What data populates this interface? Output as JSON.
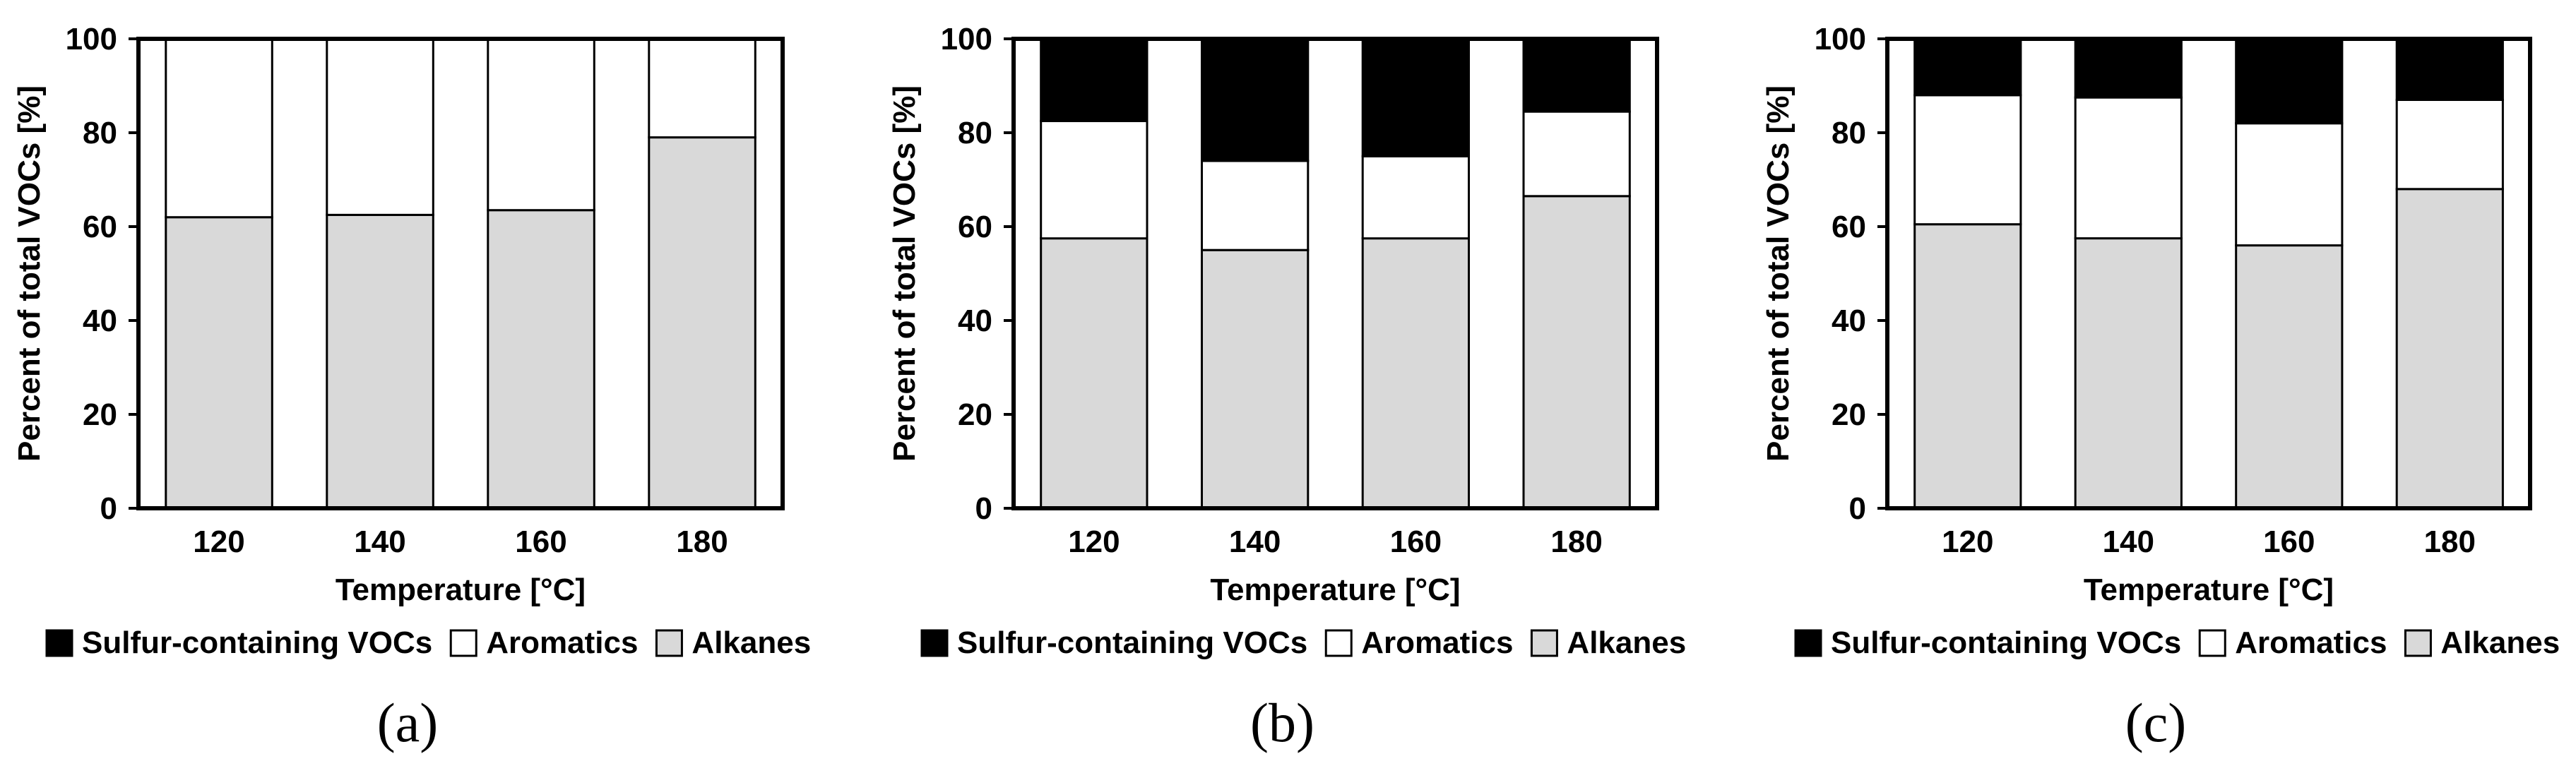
{
  "figure": {
    "colors": {
      "sulfur": "#000000",
      "aromatics": "#ffffff",
      "alkanes": "#d9d9d9",
      "axis": "#000000"
    }
  },
  "chart_data": [
    {
      "type": "bar",
      "stacked": true,
      "panel_label": "(a)",
      "categories": [
        "120",
        "140",
        "160",
        "180"
      ],
      "series": [
        {
          "name": "Alkanes",
          "values": [
            62,
            62.5,
            63.5,
            79
          ]
        },
        {
          "name": "Aromatics",
          "values": [
            38,
            37.5,
            36.5,
            21
          ]
        },
        {
          "name": "Sulfur-containing VOCs",
          "values": [
            0,
            0,
            0,
            0
          ]
        }
      ],
      "legend": [
        "Sulfur-containing VOCs",
        "Aromatics",
        "Alkanes"
      ],
      "xlabel": "Temperature [°C]",
      "ylabel": "Percent of total VOCs [%]",
      "ylim": [
        0,
        100
      ],
      "yticks": [
        "0",
        "20",
        "40",
        "60",
        "80",
        "100"
      ]
    },
    {
      "type": "bar",
      "stacked": true,
      "panel_label": "(b)",
      "categories": [
        "120",
        "140",
        "160",
        "180"
      ],
      "series": [
        {
          "name": "Alkanes",
          "values": [
            57.5,
            55,
            57.5,
            66.5
          ]
        },
        {
          "name": "Aromatics",
          "values": [
            25,
            19,
            17.5,
            18
          ]
        },
        {
          "name": "Sulfur-containing VOCs",
          "values": [
            17.5,
            26,
            25,
            15.5
          ]
        }
      ],
      "legend": [
        "Sulfur-containing VOCs",
        "Aromatics",
        "Alkanes"
      ],
      "xlabel": "Temperature [°C]",
      "ylabel": "Percent of total VOCs [%]",
      "ylim": [
        0,
        100
      ],
      "yticks": [
        "0",
        "20",
        "40",
        "60",
        "80",
        "100"
      ]
    },
    {
      "type": "bar",
      "stacked": true,
      "panel_label": "(c)",
      "categories": [
        "120",
        "140",
        "160",
        "180"
      ],
      "series": [
        {
          "name": "Alkanes",
          "values": [
            60.5,
            57.5,
            56,
            68
          ]
        },
        {
          "name": "Aromatics",
          "values": [
            27.5,
            30,
            26,
            19
          ]
        },
        {
          "name": "Sulfur-containing VOCs",
          "values": [
            12,
            12.5,
            18,
            13
          ]
        }
      ],
      "legend": [
        "Sulfur-containing VOCs",
        "Aromatics",
        "Alkanes"
      ],
      "xlabel": "Temperature [°C]",
      "ylabel": "Percent of total VOCs [%]",
      "ylim": [
        0,
        100
      ],
      "yticks": [
        "0",
        "20",
        "40",
        "60",
        "80",
        "100"
      ]
    }
  ]
}
